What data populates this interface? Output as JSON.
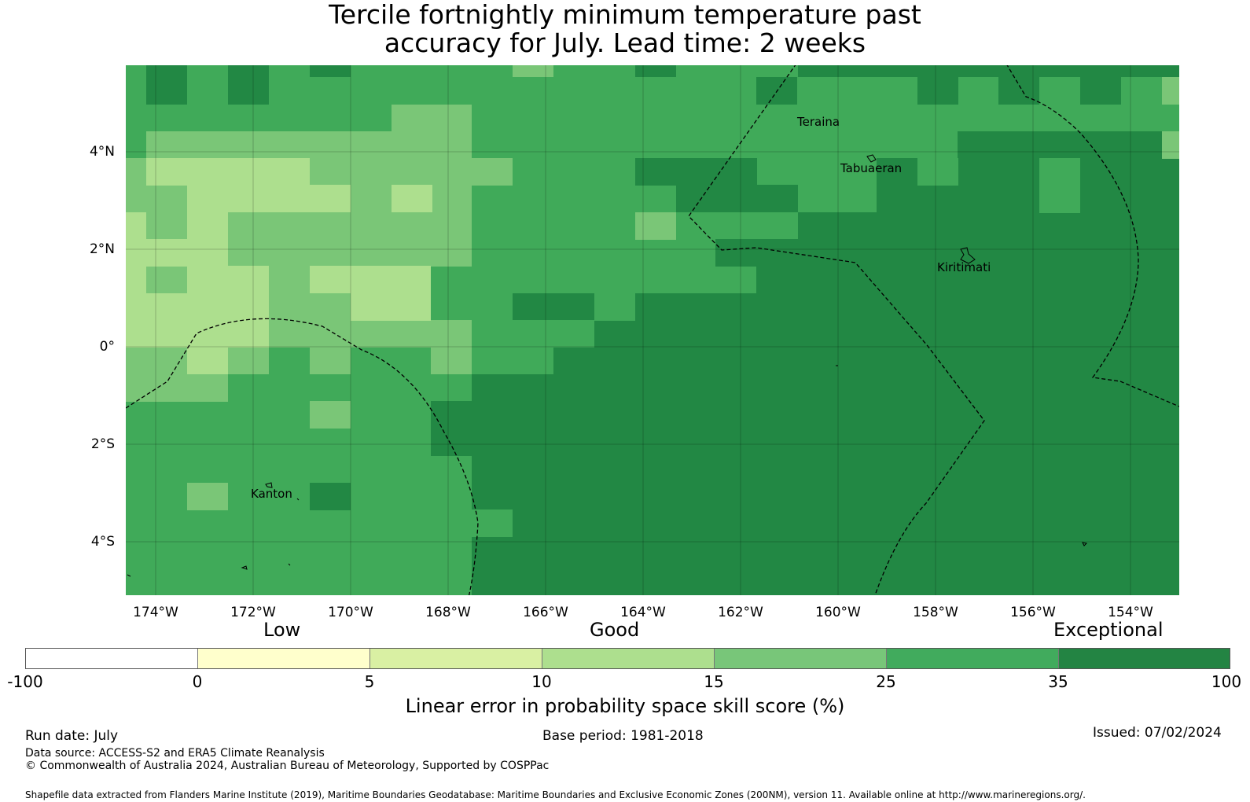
{
  "title": {
    "line1": "Tercile fortnightly minimum temperature past",
    "line2": "accuracy for July. Lead time: 2 weeks"
  },
  "map": {
    "lat_labels": [
      "4°N",
      "2°N",
      "0°",
      "2°S",
      "4°S"
    ],
    "lon_labels": [
      "174°W",
      "172°W",
      "170°W",
      "168°W",
      "166°W",
      "164°W",
      "162°W",
      "160°W",
      "158°W",
      "156°W",
      "154°W"
    ],
    "lat_range": [
      -5.1,
      5.8
    ],
    "lon_range": [
      -174.6,
      -153.0
    ],
    "gridlines": true,
    "places": [
      {
        "name": "Teraina"
      },
      {
        "name": "Tabuaeran"
      },
      {
        "name": "Kiritimati"
      },
      {
        "name": "Kanton"
      }
    ],
    "skill_colors": {
      "c15_25": "#7ac677",
      "c25_35": "#40aa59",
      "c35_100": "#228844",
      "c10_15": "#addf8e",
      "c5_10": "#d9f0a3",
      "c0_5": "#ffffcc",
      "neg": "#ffffff"
    }
  },
  "legend": {
    "qualitative": [
      "Low",
      "Good",
      "Exceptional"
    ],
    "ticks": [
      "-100",
      "0",
      "5",
      "10",
      "15",
      "25",
      "35",
      "100"
    ],
    "colors": [
      "#ffffff",
      "#ffffcc",
      "#d9f0a3",
      "#addf8e",
      "#78c679",
      "#41ab5d",
      "#238443"
    ],
    "label": "Linear error in probability space skill score (%)"
  },
  "footer": {
    "run_date": "Run date: July",
    "base_period": "Base period: 1981-2018",
    "issued": "Issued: 07/02/2024",
    "data_source": "Data source: ACCESS-S2 and ERA5 Climate Reanalysis",
    "copyright": "© Commonwealth of Australia 2024, Australian Bureau of Meteorology, Supported by COSPPac",
    "shapefile": "Shapefile data extracted from Flanders Marine Institute (2019), Maritime Boundaries Geodatabase: Maritime Boundaries and Exclusive Economic Zones (200NM), version 11. Available online at http://www.marineregions.org/."
  }
}
